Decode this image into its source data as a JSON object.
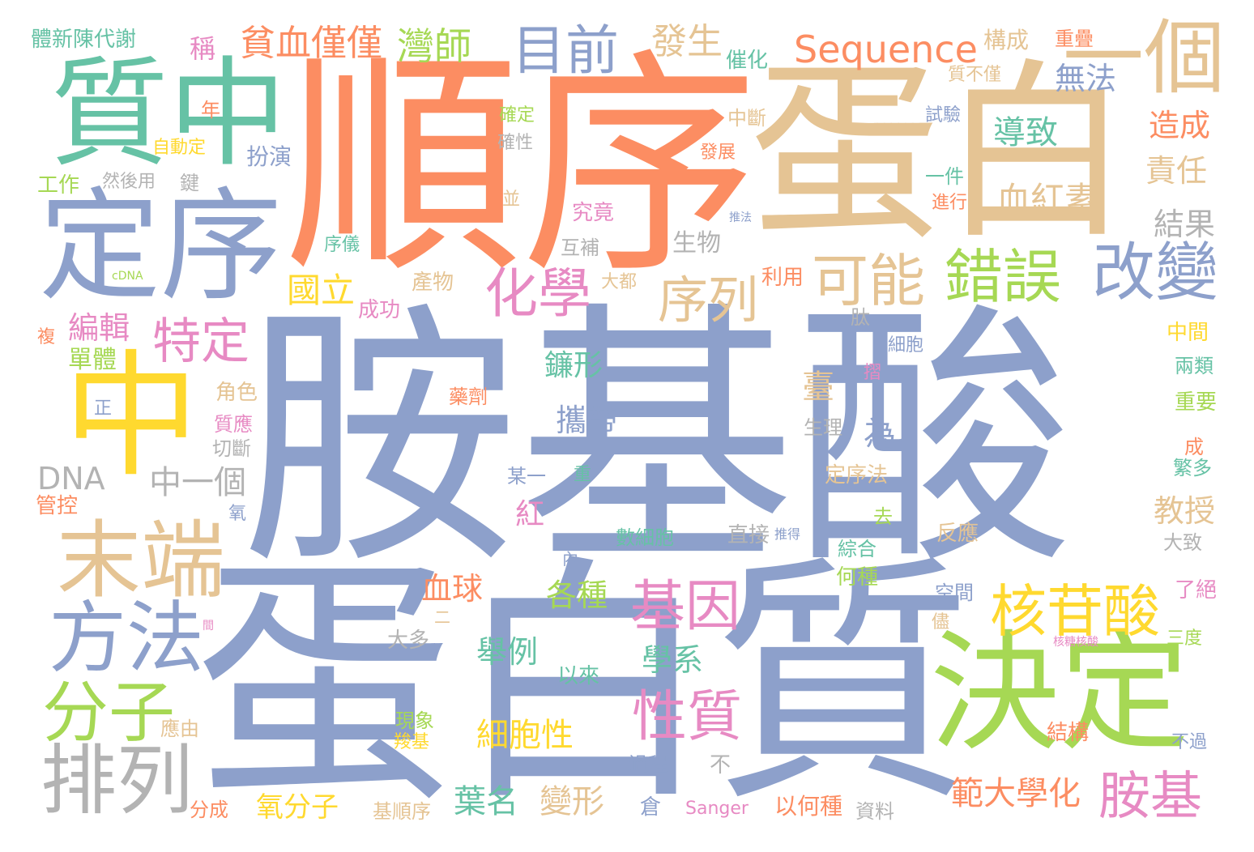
{
  "palette": {
    "blue": "#8DA0CB",
    "orange": "#FC8D62",
    "green": "#66C2A5",
    "tan": "#E5C494",
    "yellow": "#FFD92F",
    "lime": "#A6D854",
    "pink": "#E78AC3",
    "gray": "#B3B3B3"
  },
  "words": [
    {
      "text": "胺基酸",
      "color": "blue"
    },
    {
      "text": "蛋白質",
      "color": "blue"
    },
    {
      "text": "順序",
      "color": "orange"
    },
    {
      "text": "蛋白",
      "color": "tan"
    },
    {
      "text": "質中",
      "color": "green"
    },
    {
      "text": "定序",
      "color": "blue"
    },
    {
      "text": "中",
      "color": "yellow"
    },
    {
      "text": "決定",
      "color": "lime"
    },
    {
      "text": "一個",
      "color": "tan"
    },
    {
      "text": "末端",
      "color": "tan"
    },
    {
      "text": "方法",
      "color": "blue"
    },
    {
      "text": "排列",
      "color": "gray"
    },
    {
      "text": "分子",
      "color": "lime"
    },
    {
      "text": "目前",
      "color": "blue"
    },
    {
      "text": "改變",
      "color": "blue"
    },
    {
      "text": "可能",
      "color": "tan"
    },
    {
      "text": "錯誤",
      "color": "lime"
    },
    {
      "text": "化學",
      "color": "pink"
    },
    {
      "text": "序列",
      "color": "tan"
    },
    {
      "text": "特定",
      "color": "pink"
    },
    {
      "text": "基因",
      "color": "pink"
    },
    {
      "text": "核苷酸",
      "color": "yellow"
    },
    {
      "text": "性質",
      "color": "pink"
    },
    {
      "text": "胺基",
      "color": "pink"
    },
    {
      "text": "Sequence",
      "color": "orange"
    },
    {
      "text": "貧血僅僅",
      "color": "orange"
    },
    {
      "text": "灣師",
      "color": "lime"
    },
    {
      "text": "發生",
      "color": "tan"
    },
    {
      "text": "國立",
      "color": "yellow"
    },
    {
      "text": "編輯",
      "color": "pink"
    },
    {
      "text": "單體",
      "color": "lime"
    },
    {
      "text": "DNA",
      "color": "gray"
    },
    {
      "text": "中一個",
      "color": "gray"
    },
    {
      "text": "血球",
      "color": "orange"
    },
    {
      "text": "各種",
      "color": "lime"
    },
    {
      "text": "學系",
      "color": "green"
    },
    {
      "text": "舉例",
      "color": "green"
    },
    {
      "text": "細胞性",
      "color": "yellow"
    },
    {
      "text": "葉名",
      "color": "green"
    },
    {
      "text": "變形",
      "color": "tan"
    },
    {
      "text": "氧分子",
      "color": "yellow"
    },
    {
      "text": "範大學化",
      "color": "orange"
    },
    {
      "text": "導致",
      "color": "green"
    },
    {
      "text": "血紅素",
      "color": "tan"
    },
    {
      "text": "無法",
      "color": "blue"
    },
    {
      "text": "造成",
      "color": "orange"
    },
    {
      "text": "責任",
      "color": "tan"
    },
    {
      "text": "結果",
      "color": "gray"
    },
    {
      "text": "教授",
      "color": "tan"
    },
    {
      "text": "鐮形",
      "color": "green"
    },
    {
      "text": "攜帶",
      "color": "blue"
    },
    {
      "text": "臺",
      "color": "tan"
    },
    {
      "text": "為",
      "color": "blue"
    },
    {
      "text": "紅",
      "color": "pink"
    },
    {
      "text": "稱",
      "color": "pink"
    },
    {
      "text": "構成",
      "color": "tan"
    },
    {
      "text": "重疊",
      "color": "orange"
    },
    {
      "text": "催化",
      "color": "green"
    },
    {
      "text": "質不僅",
      "color": "tan"
    },
    {
      "text": "試驗",
      "color": "blue"
    },
    {
      "text": "中斷",
      "color": "tan"
    },
    {
      "text": "確定",
      "color": "lime"
    },
    {
      "text": "確性",
      "color": "gray"
    },
    {
      "text": "發展",
      "color": "orange"
    },
    {
      "text": "扮演",
      "color": "blue"
    },
    {
      "text": "自動定",
      "color": "yellow"
    },
    {
      "text": "年",
      "color": "orange"
    },
    {
      "text": "工作",
      "color": "lime"
    },
    {
      "text": "然後用",
      "color": "gray"
    },
    {
      "text": "鍵",
      "color": "gray"
    },
    {
      "text": "並",
      "color": "tan"
    },
    {
      "text": "究竟",
      "color": "pink"
    },
    {
      "text": "推法",
      "color": "blue"
    },
    {
      "text": "一件",
      "color": "green"
    },
    {
      "text": "進行",
      "color": "orange"
    },
    {
      "text": "生物",
      "color": "gray"
    },
    {
      "text": "互補",
      "color": "gray"
    },
    {
      "text": "序儀",
      "color": "green"
    },
    {
      "text": "cDNA",
      "color": "lime"
    },
    {
      "text": "產物",
      "color": "tan"
    },
    {
      "text": "大都",
      "color": "tan"
    },
    {
      "text": "利用",
      "color": "orange"
    },
    {
      "text": "成功",
      "color": "pink"
    },
    {
      "text": "肽",
      "color": "gray"
    },
    {
      "text": "細胞",
      "color": "blue"
    },
    {
      "text": "摺",
      "color": "pink"
    },
    {
      "text": "複",
      "color": "orange"
    },
    {
      "text": "中間",
      "color": "yellow"
    },
    {
      "text": "兩類",
      "color": "green"
    },
    {
      "text": "重要",
      "color": "lime"
    },
    {
      "text": "藥劑",
      "color": "orange"
    },
    {
      "text": "角色",
      "color": "tan"
    },
    {
      "text": "質應",
      "color": "pink"
    },
    {
      "text": "切斷",
      "color": "gray"
    },
    {
      "text": "正",
      "color": "blue"
    },
    {
      "text": "生理",
      "color": "gray"
    },
    {
      "text": "成",
      "color": "orange"
    },
    {
      "text": "繁多",
      "color": "green"
    },
    {
      "text": "定序法",
      "color": "tan"
    },
    {
      "text": "某一",
      "color": "blue"
    },
    {
      "text": "重",
      "color": "green"
    },
    {
      "text": "管控",
      "color": "orange"
    },
    {
      "text": "氧",
      "color": "blue"
    },
    {
      "text": "去",
      "color": "lime"
    },
    {
      "text": "數細胞",
      "color": "green"
    },
    {
      "text": "直接",
      "color": "gray"
    },
    {
      "text": "推得",
      "color": "blue"
    },
    {
      "text": "反應",
      "color": "tan"
    },
    {
      "text": "綜合",
      "color": "green"
    },
    {
      "text": "大致",
      "color": "gray"
    },
    {
      "text": "內",
      "color": "blue"
    },
    {
      "text": "何種",
      "color": "lime"
    },
    {
      "text": "空間",
      "color": "blue"
    },
    {
      "text": "了絕",
      "color": "pink"
    },
    {
      "text": "二",
      "color": "tan"
    },
    {
      "text": "間",
      "color": "pink"
    },
    {
      "text": "大多",
      "color": "gray"
    },
    {
      "text": "儘",
      "color": "tan"
    },
    {
      "text": "核糖核酸",
      "color": "pink"
    },
    {
      "text": "三度",
      "color": "lime"
    },
    {
      "text": "以來",
      "color": "green"
    },
    {
      "text": "現象",
      "color": "lime"
    },
    {
      "text": "羧基",
      "color": "yellow"
    },
    {
      "text": "應由",
      "color": "tan"
    },
    {
      "text": "結構",
      "color": "orange"
    },
    {
      "text": "不過",
      "color": "blue"
    },
    {
      "text": "不",
      "color": "gray"
    },
    {
      "text": "過程",
      "color": "blue"
    },
    {
      "text": "倉",
      "color": "blue"
    },
    {
      "text": "分成",
      "color": "orange"
    },
    {
      "text": "基順序",
      "color": "tan"
    },
    {
      "text": "Sanger",
      "color": "pink"
    },
    {
      "text": "以何種",
      "color": "orange"
    },
    {
      "text": "資料",
      "color": "gray"
    },
    {
      "text": "體新陳代謝",
      "color": "green"
    }
  ]
}
